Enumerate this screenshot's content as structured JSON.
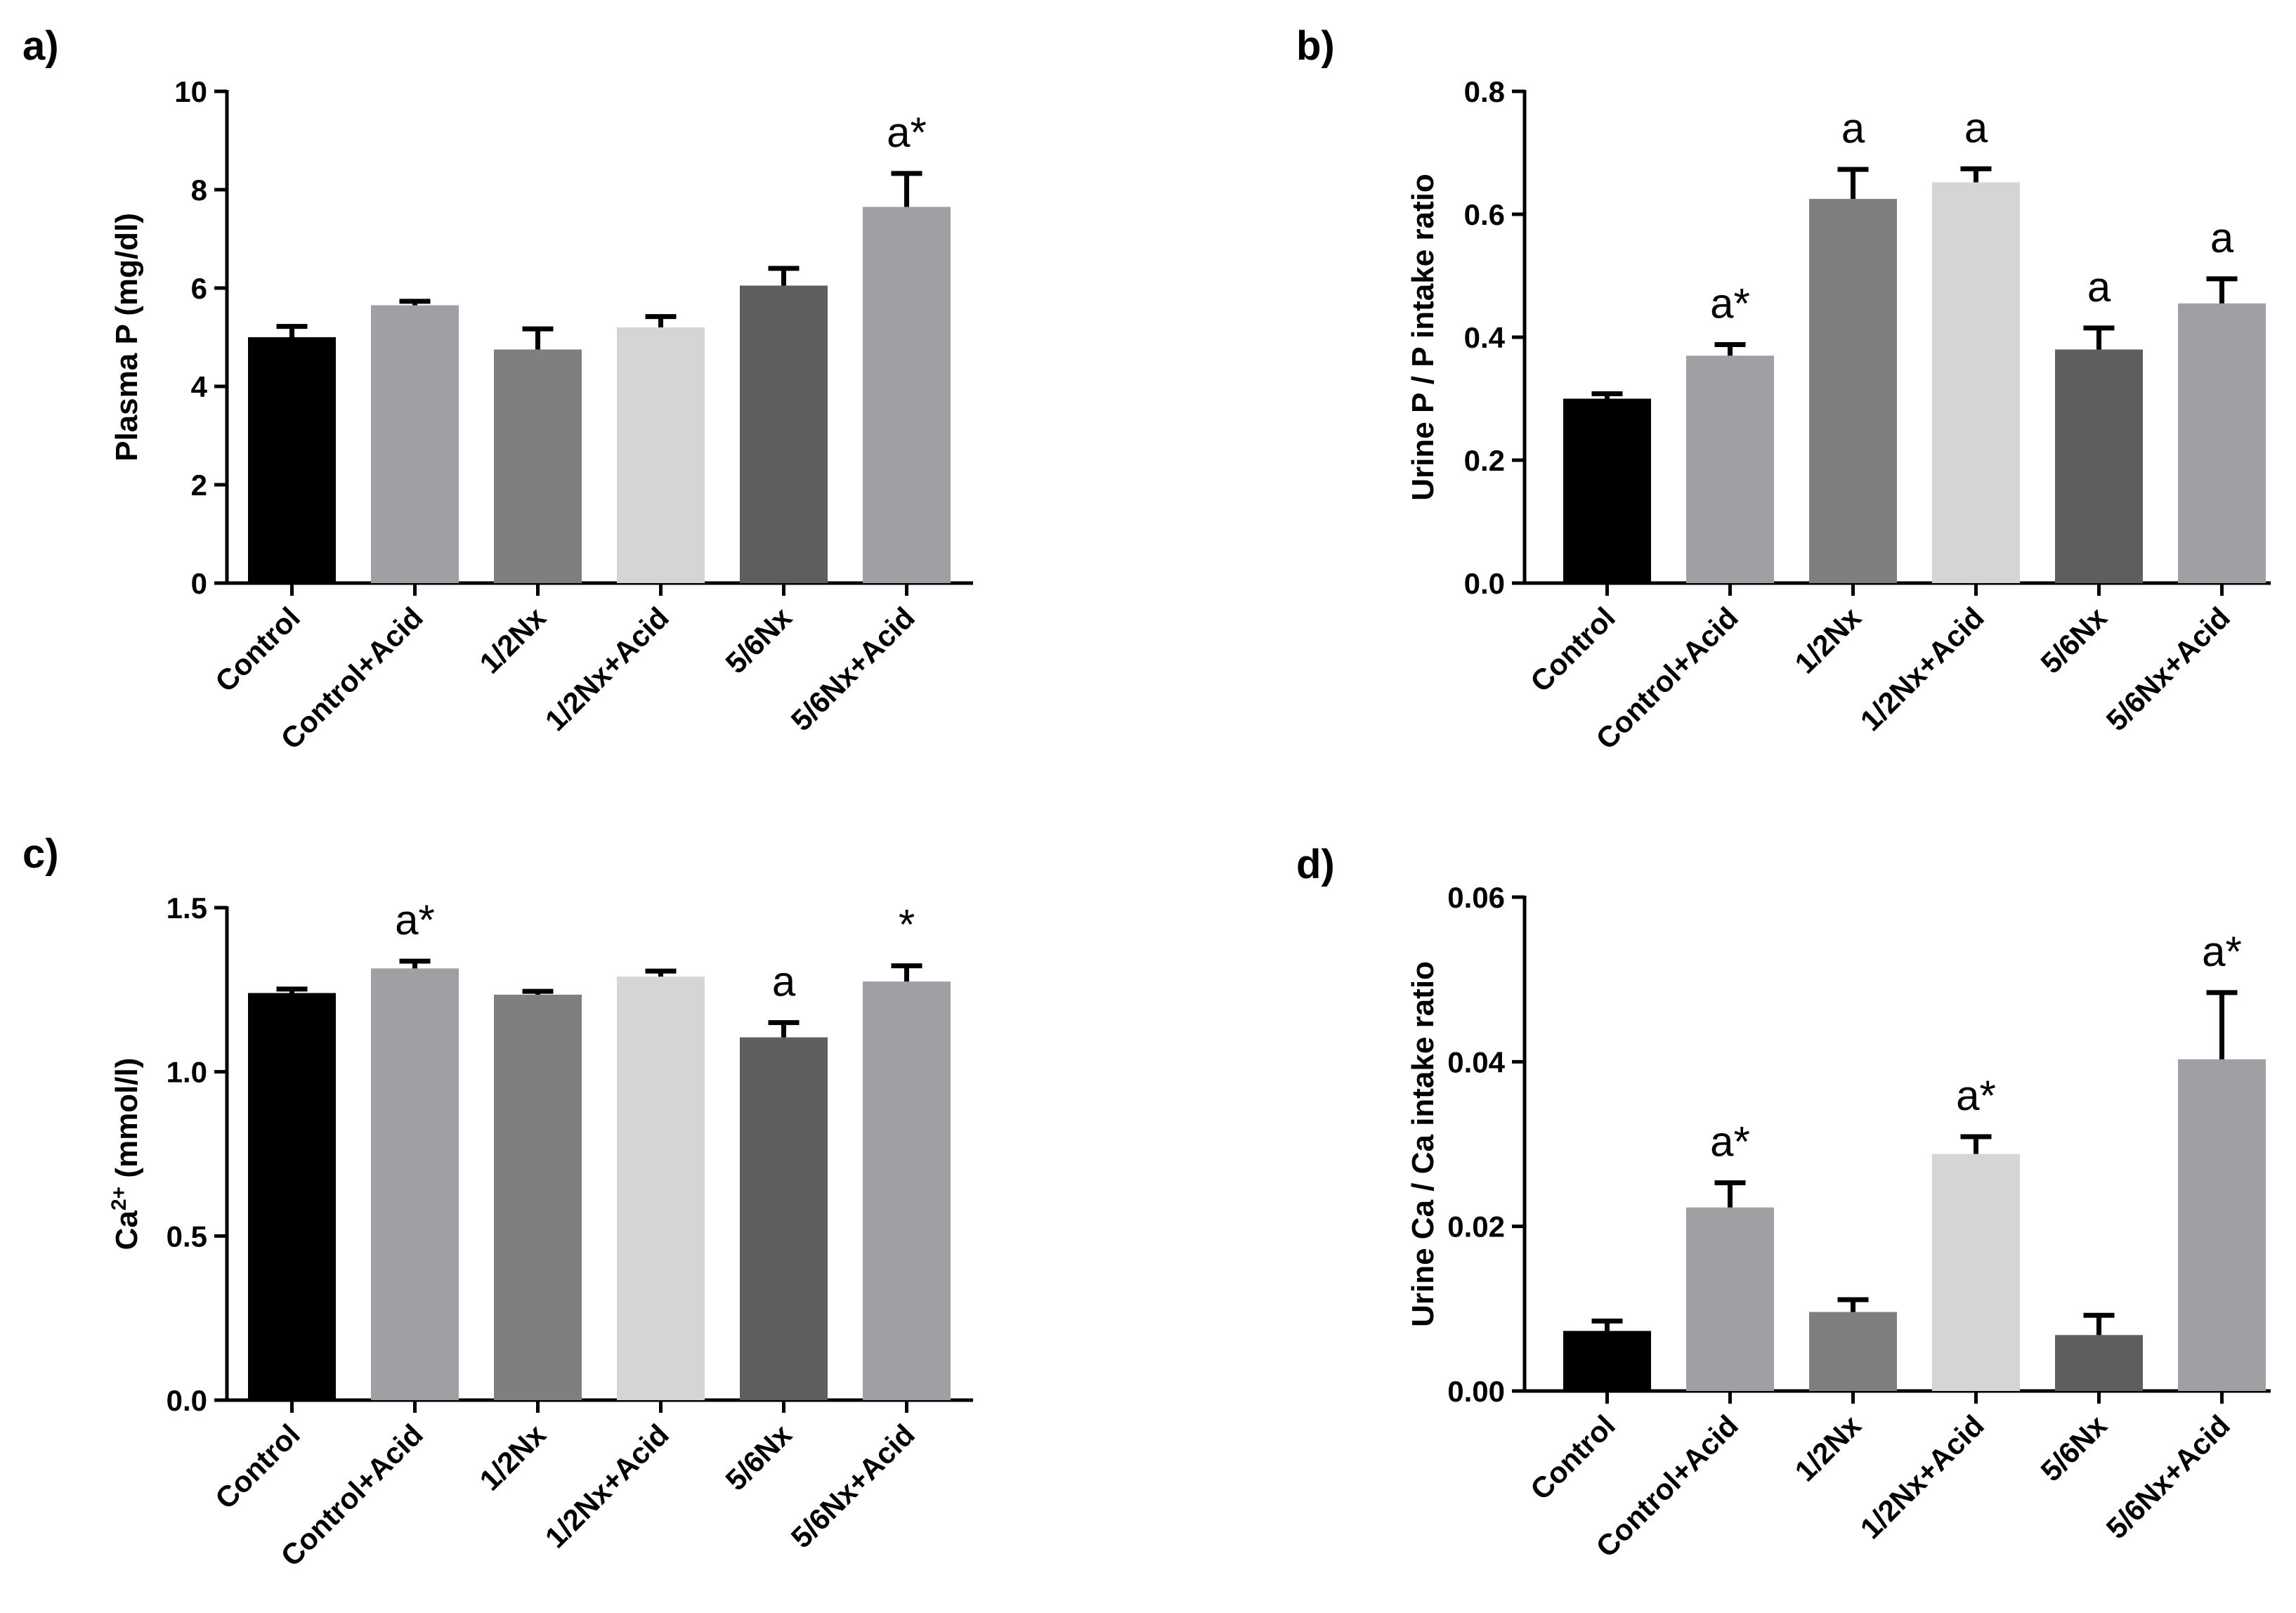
{
  "figure": {
    "panel_labels": [
      "a)",
      "b)",
      "c)",
      "d)"
    ]
  },
  "chart_data": [
    {
      "type": "bar",
      "panel": "a)",
      "title": "",
      "xlabel": "",
      "ylabel": "Plasma P (mg/dl)",
      "ylabel_super": "",
      "ylabel_rest": "",
      "ylim": [
        0,
        10
      ],
      "yticks": [
        0,
        2,
        4,
        6,
        8,
        10
      ],
      "ytick_labels": [
        "0",
        "2",
        "4",
        "6",
        "8",
        "10"
      ],
      "categories": [
        "Control",
        "Control+Acid",
        "1/2Nx",
        "1/2Nx+Acid",
        "5/6Nx",
        "5/6Nx+Acid"
      ],
      "values": [
        5.0,
        5.65,
        4.75,
        5.2,
        6.05,
        7.65
      ],
      "errors": [
        0.22,
        0.08,
        0.42,
        0.22,
        0.35,
        0.68
      ],
      "annotations": [
        "",
        "",
        "",
        "",
        "",
        "a*"
      ],
      "colors": [
        "#000000",
        "#a0a0a4",
        "#7f7f7f",
        "#d5d5d5",
        "#5e5e5e",
        "#a0a0a4"
      ]
    },
    {
      "type": "bar",
      "panel": "b)",
      "title": "",
      "xlabel": "",
      "ylabel": "Urine P / P intake ratio",
      "ylabel_super": "",
      "ylabel_rest": "",
      "ylim": [
        0,
        0.8
      ],
      "yticks": [
        0,
        0.2,
        0.4,
        0.6,
        0.8
      ],
      "ytick_labels": [
        "0.0",
        "0.2",
        "0.4",
        "0.6",
        "0.8"
      ],
      "categories": [
        "Control",
        "Control+Acid",
        "1/2Nx",
        "1/2Nx+Acid",
        "5/6Nx",
        "5/6Nx+Acid"
      ],
      "values": [
        0.3,
        0.37,
        0.625,
        0.652,
        0.38,
        0.455
      ],
      "errors": [
        0.008,
        0.018,
        0.048,
        0.022,
        0.035,
        0.04
      ],
      "annotations": [
        "",
        "a*",
        "a",
        "a",
        "a",
        "a"
      ],
      "colors": [
        "#000000",
        "#a0a0a4",
        "#7f7f7f",
        "#d5d5d5",
        "#5e5e5e",
        "#a0a0a4"
      ]
    },
    {
      "type": "bar",
      "panel": "c)",
      "title": "",
      "xlabel": "",
      "ylabel": "Ca2+ (mmol/l)",
      "ylabel_main": "Ca",
      "ylabel_super": "2+",
      "ylabel_rest": " (mmol/l)",
      "ylim": [
        0,
        1.5
      ],
      "yticks": [
        0,
        0.5,
        1.0,
        1.5
      ],
      "ytick_labels": [
        "0.0",
        "0.5",
        "1.0",
        "1.5"
      ],
      "categories": [
        "Control",
        "Control+Acid",
        "1/2Nx",
        "1/2Nx+Acid",
        "5/6Nx",
        "5/6Nx+Acid"
      ],
      "values": [
        1.24,
        1.315,
        1.235,
        1.29,
        1.105,
        1.275
      ],
      "errors": [
        0.012,
        0.022,
        0.01,
        0.017,
        0.045,
        0.048
      ],
      "annotations": [
        "",
        "a*",
        "",
        "",
        "a",
        "*"
      ],
      "colors": [
        "#000000",
        "#a0a0a4",
        "#7f7f7f",
        "#d5d5d5",
        "#5e5e5e",
        "#a0a0a4"
      ]
    },
    {
      "type": "bar",
      "panel": "d)",
      "title": "",
      "xlabel": "",
      "ylabel": "Urine Ca / Ca intake ratio",
      "ylabel_super": "",
      "ylabel_rest": "",
      "ylim": [
        0,
        0.06
      ],
      "yticks": [
        0,
        0.02,
        0.04,
        0.06
      ],
      "ytick_labels": [
        "0.00",
        "0.02",
        "0.04",
        "0.06"
      ],
      "categories": [
        "Control",
        "Control+Acid",
        "1/2Nx",
        "1/2Nx+Acid",
        "5/6Nx",
        "5/6Nx+Acid"
      ],
      "values": [
        0.0073,
        0.0223,
        0.0096,
        0.0288,
        0.0068,
        0.0403
      ],
      "errors": [
        0.0012,
        0.003,
        0.0015,
        0.0021,
        0.0024,
        0.0081
      ],
      "annotations": [
        "",
        "a*",
        "",
        "a*",
        "",
        "a*"
      ],
      "colors": [
        "#000000",
        "#a0a0a4",
        "#7f7f7f",
        "#d5d5d5",
        "#5e5e5e",
        "#a0a0a4"
      ]
    }
  ]
}
